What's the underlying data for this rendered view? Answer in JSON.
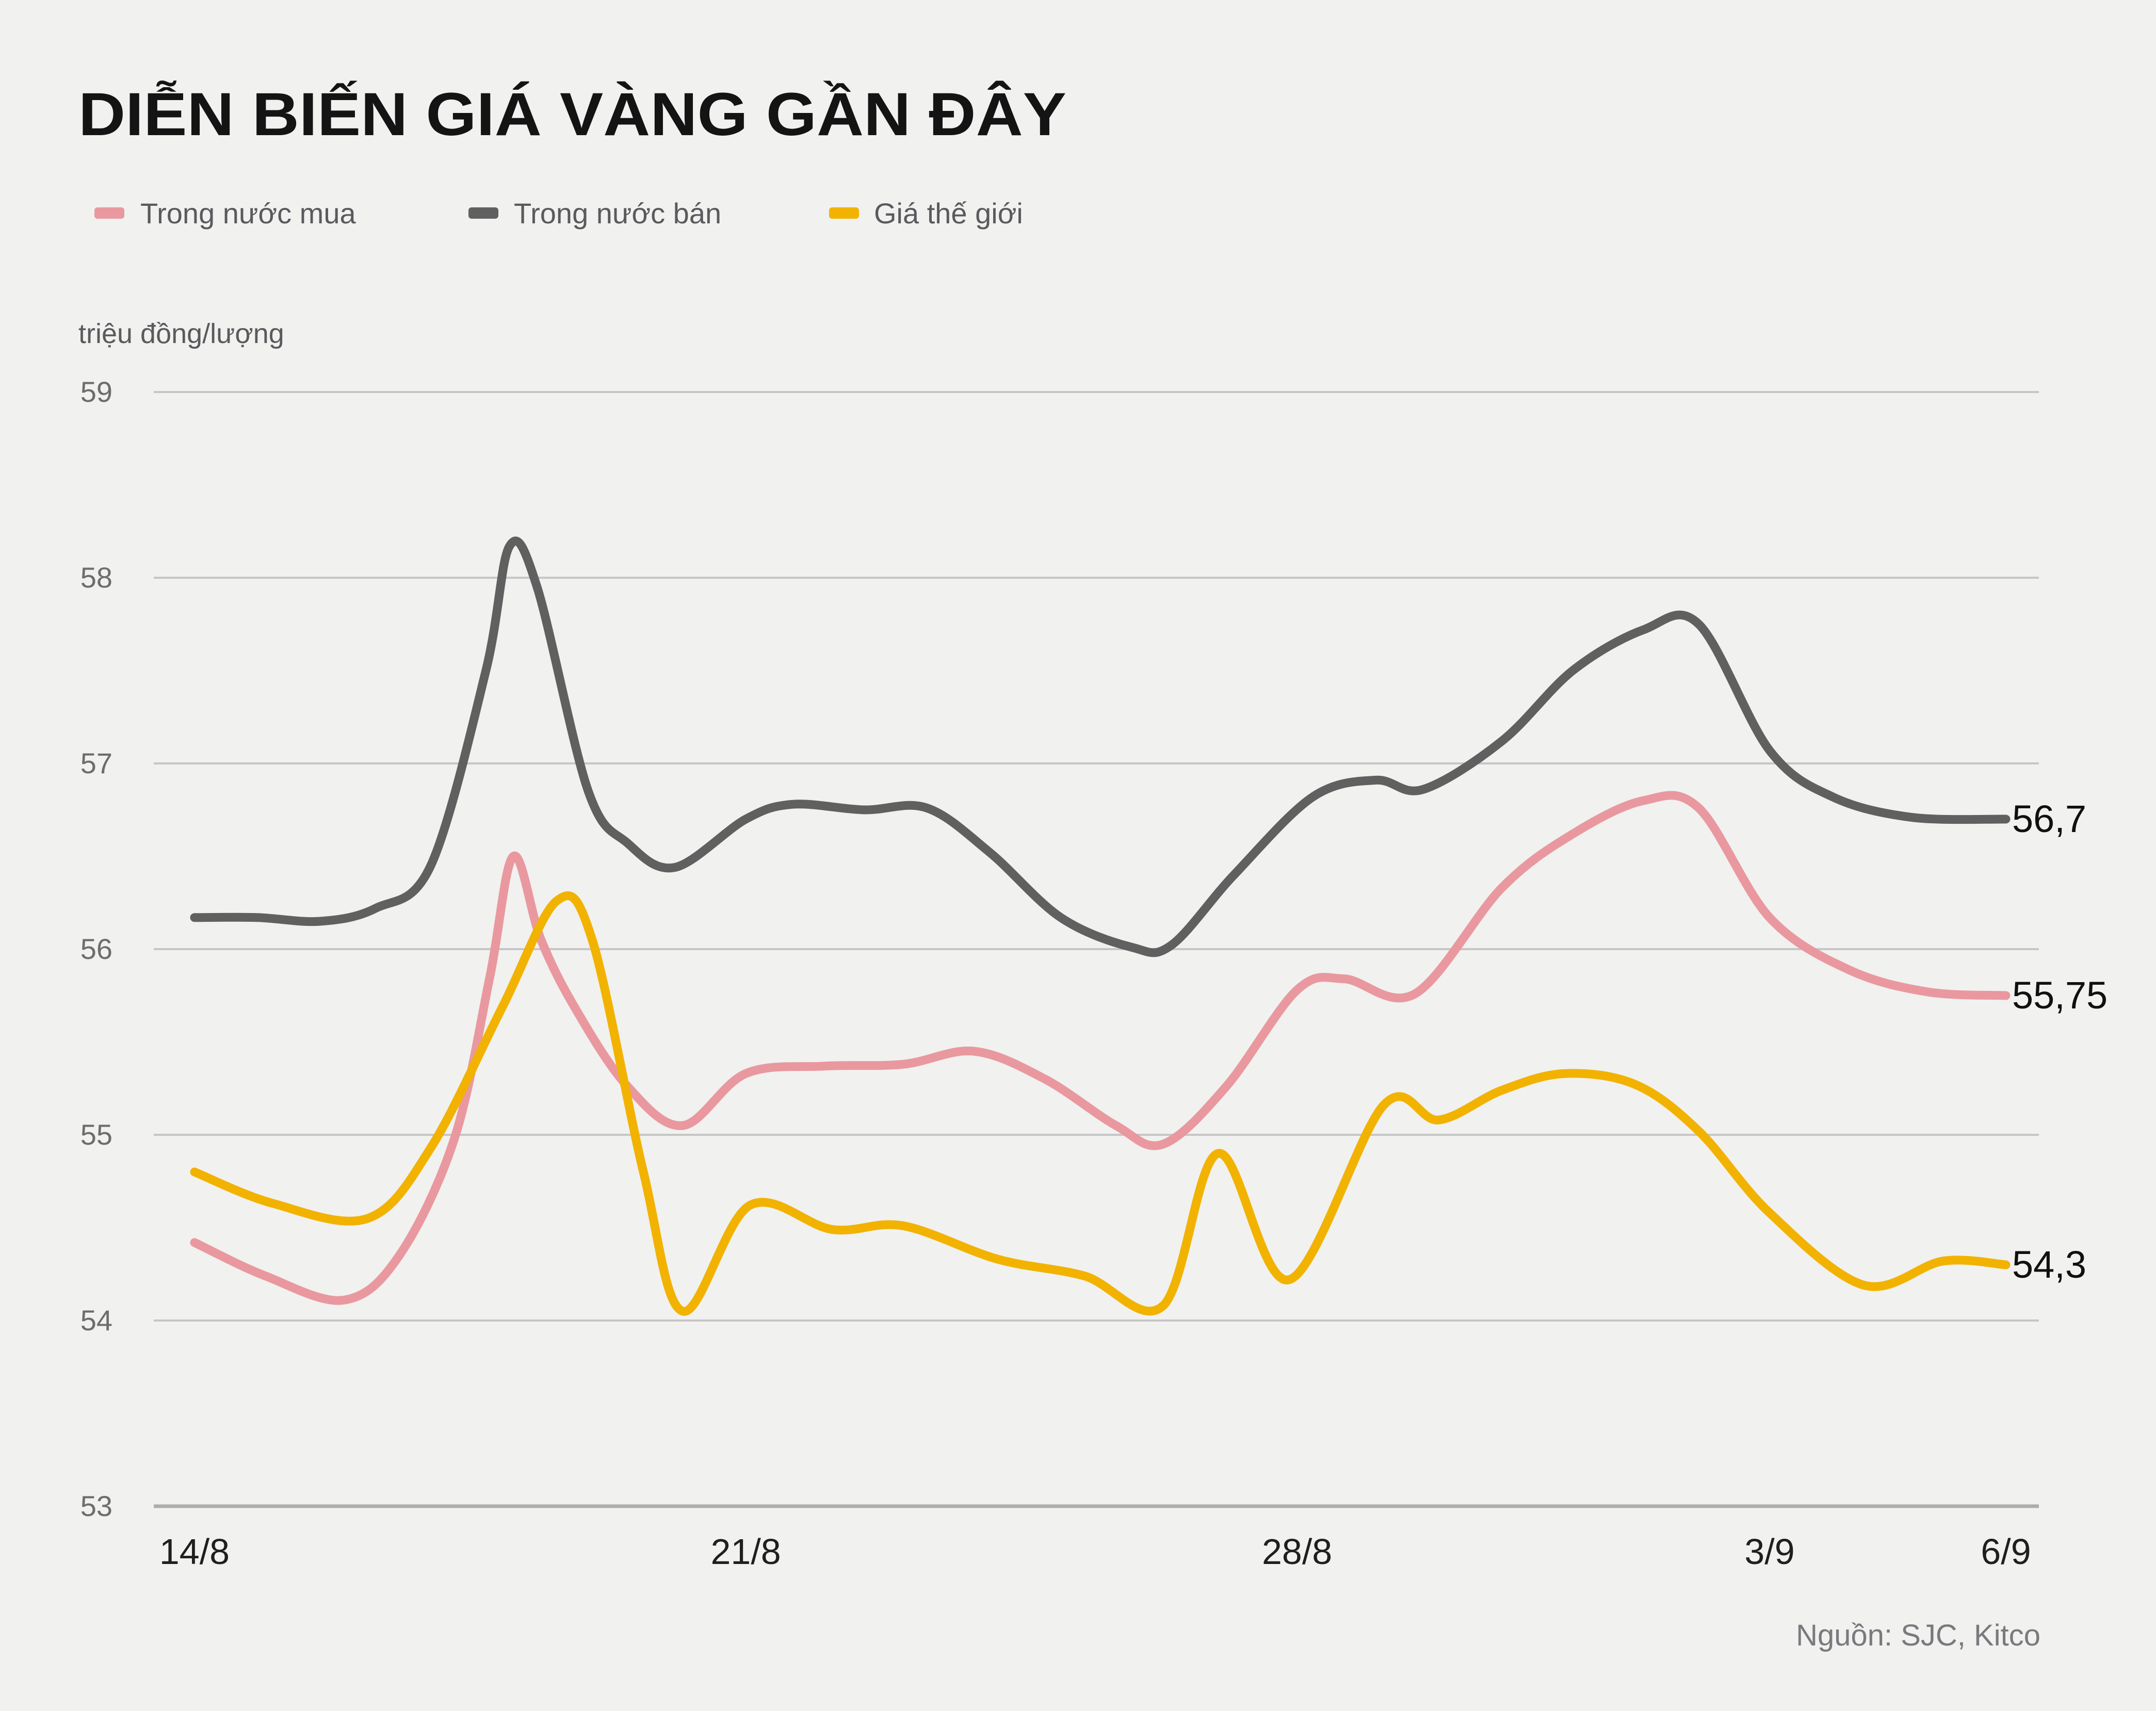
{
  "title": "DIỄN BIẾN GIÁ VÀNG GẦN ĐÂY",
  "y_unit": "triệu đồng/lượng",
  "source": "Nguồn: SJC, Kitco",
  "legend": {
    "items": [
      {
        "label": "Trong nước mua",
        "color": "#e9989f"
      },
      {
        "label": "Trong nước bán",
        "color": "#606060"
      },
      {
        "label": "Giá thế giới",
        "color": "#f2b200"
      }
    ]
  },
  "colors": {
    "background": "#f1f1ef",
    "grid": "#c6c6c6",
    "grid_bottom": "#adadad",
    "buy_pink": "#e9989f",
    "sell_gray": "#606060",
    "world_gold": "#f2b200"
  },
  "chart_data": {
    "type": "line",
    "title": "DIỄN BIẾN GIÁ VÀNG GẦN ĐÂY",
    "xlabel": "",
    "ylabel": "triệu đồng/lượng",
    "ylim": [
      53,
      59
    ],
    "y_ticks": [
      59,
      58,
      57,
      56,
      55,
      54,
      53
    ],
    "x_ticks": [
      {
        "label": "14/8",
        "day": 0
      },
      {
        "label": "21/8",
        "day": 7
      },
      {
        "label": "28/8",
        "day": 14
      },
      {
        "label": "3/9",
        "day": 20
      },
      {
        "label": "6/9",
        "day": 23
      }
    ],
    "x_range_days": [
      0,
      23
    ],
    "grid": true,
    "legend_position": "top-left",
    "series": [
      {
        "name": "Trong nước mua",
        "color": "#e9989f",
        "end_label": "55,75",
        "points": [
          [
            0,
            54.42
          ],
          [
            0.9,
            54.24
          ],
          [
            1.9,
            54.11
          ],
          [
            2.6,
            54.35
          ],
          [
            3.3,
            54.98
          ],
          [
            3.75,
            55.85
          ],
          [
            4.05,
            56.5
          ],
          [
            4.4,
            56.05
          ],
          [
            4.85,
            55.67
          ],
          [
            5.5,
            55.26
          ],
          [
            6.2,
            55.05
          ],
          [
            7,
            55.33
          ],
          [
            8,
            55.37
          ],
          [
            9,
            55.38
          ],
          [
            9.9,
            55.45
          ],
          [
            10.8,
            55.3
          ],
          [
            11.7,
            55.05
          ],
          [
            12.3,
            54.95
          ],
          [
            13.1,
            55.26
          ],
          [
            14,
            55.78
          ],
          [
            14.6,
            55.84
          ],
          [
            15.5,
            55.76
          ],
          [
            16.6,
            56.33
          ],
          [
            17.5,
            56.62
          ],
          [
            18.4,
            56.8
          ],
          [
            19.1,
            56.76
          ],
          [
            20,
            56.17
          ],
          [
            21,
            55.89
          ],
          [
            22,
            55.77
          ],
          [
            23,
            55.75
          ]
        ]
      },
      {
        "name": "Trong nước bán",
        "color": "#606060",
        "end_label": "56,7",
        "points": [
          [
            0,
            56.17
          ],
          [
            0.8,
            56.17
          ],
          [
            1.6,
            56.15
          ],
          [
            2.3,
            56.22
          ],
          [
            3,
            56.45
          ],
          [
            3.7,
            57.5
          ],
          [
            4,
            58.17
          ],
          [
            4.35,
            57.95
          ],
          [
            5,
            56.85
          ],
          [
            5.5,
            56.57
          ],
          [
            6.1,
            56.44
          ],
          [
            7,
            56.7
          ],
          [
            7.6,
            56.78
          ],
          [
            8.5,
            56.75
          ],
          [
            9.3,
            56.76
          ],
          [
            10.1,
            56.52
          ],
          [
            11,
            56.17
          ],
          [
            11.9,
            56.01
          ],
          [
            12.4,
            56.02
          ],
          [
            13.2,
            56.4
          ],
          [
            14.2,
            56.82
          ],
          [
            15,
            56.91
          ],
          [
            15.6,
            56.86
          ],
          [
            16.6,
            57.12
          ],
          [
            17.5,
            57.5
          ],
          [
            18.4,
            57.72
          ],
          [
            19.1,
            57.75
          ],
          [
            20,
            57.07
          ],
          [
            20.8,
            56.82
          ],
          [
            21.8,
            56.71
          ],
          [
            23,
            56.7
          ]
        ]
      },
      {
        "name": "Giá thế giới",
        "color": "#f2b200",
        "end_label": "54,3",
        "points": [
          [
            0,
            54.8
          ],
          [
            1,
            54.63
          ],
          [
            2.2,
            54.55
          ],
          [
            3,
            54.93
          ],
          [
            3.9,
            55.68
          ],
          [
            4.6,
            56.26
          ],
          [
            5.05,
            56.05
          ],
          [
            5.7,
            54.8
          ],
          [
            6.2,
            54.05
          ],
          [
            7.05,
            54.62
          ],
          [
            8.1,
            54.49
          ],
          [
            9,
            54.51
          ],
          [
            10.2,
            54.33
          ],
          [
            11.3,
            54.24
          ],
          [
            12.3,
            54.08
          ],
          [
            13,
            54.9
          ],
          [
            13.9,
            54.22
          ],
          [
            15.1,
            55.16
          ],
          [
            15.8,
            55.08
          ],
          [
            16.6,
            55.24
          ],
          [
            17.4,
            55.33
          ],
          [
            18.3,
            55.27
          ],
          [
            19.1,
            55.02
          ],
          [
            20,
            54.58
          ],
          [
            21.2,
            54.19
          ],
          [
            22.2,
            54.32
          ],
          [
            23,
            54.3
          ]
        ]
      }
    ]
  }
}
